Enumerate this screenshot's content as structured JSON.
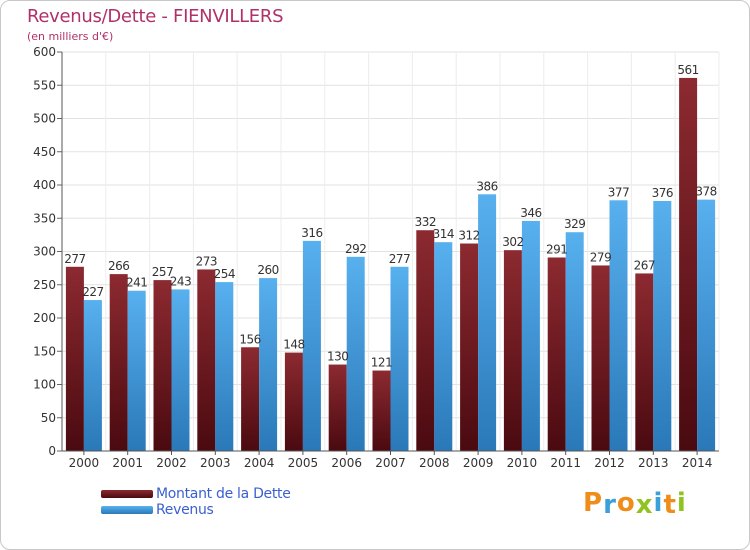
{
  "chart_data": {
    "type": "bar",
    "title": "Revenus/Dette - FIENVILLERS",
    "subtitle": "(en milliers d'€)",
    "categories": [
      "2000",
      "2001",
      "2002",
      "2003",
      "2004",
      "2005",
      "2006",
      "2007",
      "2008",
      "2009",
      "2010",
      "2011",
      "2012",
      "2013",
      "2014"
    ],
    "series": [
      {
        "name": "Montant de la Dette",
        "color": "#7a1f26",
        "values": [
          277,
          266,
          257,
          273,
          156,
          148,
          130,
          121,
          332,
          312,
          302,
          291,
          279,
          267,
          561
        ]
      },
      {
        "name": "Revenus",
        "color": "#4aa0e0",
        "values": [
          227,
          241,
          243,
          254,
          260,
          316,
          292,
          277,
          314,
          386,
          346,
          329,
          377,
          376,
          378
        ]
      }
    ],
    "ylim": [
      0,
      600
    ],
    "yticks": [
      0,
      50,
      100,
      150,
      200,
      250,
      300,
      350,
      400,
      450,
      500,
      550,
      600
    ],
    "grid": true,
    "legend_position": "bottom-left"
  },
  "logo": {
    "letters": [
      "P",
      "r",
      "o",
      "x",
      "i",
      "t",
      "i"
    ],
    "colors": [
      "#f08c1a",
      "#3aa0d8",
      "#f08c1a",
      "#8fc31f",
      "#3aa0d8",
      "#f08c1a",
      "#8fc31f"
    ]
  }
}
